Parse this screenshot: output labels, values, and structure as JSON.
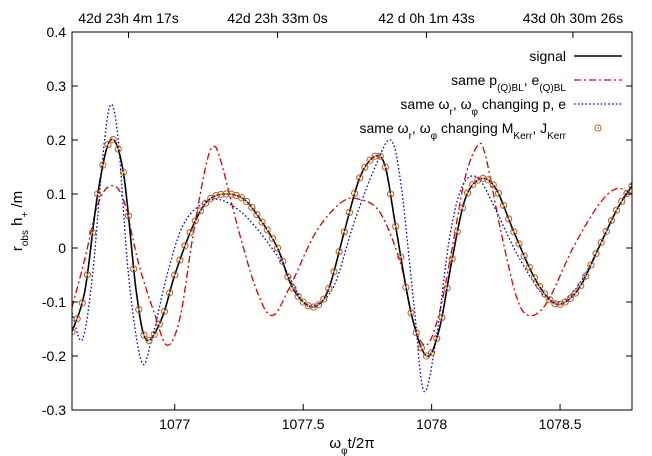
{
  "chart_data": {
    "type": "line",
    "xlabel": {
      "base": "ω",
      "sub": "φ",
      "rest": "t/2π"
    },
    "ylabel": {
      "part1": "r",
      "sub1": "obs",
      "part2": " h",
      "sub2": "+",
      "part3": " /m"
    },
    "xlim": [
      1076.6,
      1078.78
    ],
    "ylim": [
      -0.3,
      0.4
    ],
    "x_ticks": [
      1077,
      1077.5,
      1078,
      1078.5
    ],
    "x_tick_labels": [
      "1077",
      "1077.5",
      "1078",
      "1078.5"
    ],
    "y_ticks": [
      -0.3,
      -0.2,
      -0.1,
      0,
      0.1,
      0.2,
      0.3,
      0.4
    ],
    "y_tick_labels": [
      "-0.3",
      "-0.2",
      "-0.1",
      "0",
      "0.1",
      "0.2",
      "0.3",
      "0.4"
    ],
    "top_axis": {
      "ticks": [
        1076.82,
        1077.4,
        1077.98,
        1078.55
      ],
      "labels": [
        "42d 23h 4m 17s",
        "42d 23h 33m 0s",
        "42 d 0h 1m 43s",
        "43d 0h 30m 26s"
      ]
    },
    "grid": false,
    "legend_position": "top-right",
    "series": [
      {
        "name": "signal",
        "legend": [
          {
            "t": "signal"
          }
        ],
        "color": "#000000",
        "style": "solid",
        "points": [
          [
            1076.6,
            -0.155
          ],
          [
            1076.65,
            -0.08
          ],
          [
            1076.7,
            0.1
          ],
          [
            1076.75,
            0.2
          ],
          [
            1076.8,
            0.14
          ],
          [
            1076.85,
            -0.08
          ],
          [
            1076.89,
            -0.17
          ],
          [
            1076.95,
            -0.13
          ],
          [
            1077.0,
            -0.05
          ],
          [
            1077.07,
            0.04
          ],
          [
            1077.13,
            0.088
          ],
          [
            1077.2,
            0.1
          ],
          [
            1077.27,
            0.09
          ],
          [
            1077.33,
            0.055
          ],
          [
            1077.4,
            0.0
          ],
          [
            1077.45,
            -0.065
          ],
          [
            1077.5,
            -0.1
          ],
          [
            1077.55,
            -0.108
          ],
          [
            1077.6,
            -0.075
          ],
          [
            1077.66,
            0.03
          ],
          [
            1077.72,
            0.13
          ],
          [
            1077.78,
            0.17
          ],
          [
            1077.82,
            0.15
          ],
          [
            1077.86,
            0.04
          ],
          [
            1077.92,
            -0.12
          ],
          [
            1077.98,
            -0.2
          ],
          [
            1078.03,
            -0.15
          ],
          [
            1078.08,
            -0.02
          ],
          [
            1078.13,
            0.09
          ],
          [
            1078.19,
            0.128
          ],
          [
            1078.25,
            0.11
          ],
          [
            1078.32,
            0.03
          ],
          [
            1078.4,
            -0.055
          ],
          [
            1078.47,
            -0.1
          ],
          [
            1078.52,
            -0.1
          ],
          [
            1078.58,
            -0.07
          ],
          [
            1078.65,
            0.0
          ],
          [
            1078.72,
            0.07
          ],
          [
            1078.78,
            0.115
          ]
        ]
      },
      {
        "name": "same p(Q)BL, e(Q)BL",
        "legend": [
          {
            "t": "same p"
          },
          {
            "t": "(Q)BL",
            "sub": true
          },
          {
            "t": ", e"
          },
          {
            "t": "(Q)BL",
            "sub": true
          }
        ],
        "color": "#dd0000",
        "style": "dashdot",
        "points": [
          [
            1076.6,
            -0.11
          ],
          [
            1076.65,
            -0.02
          ],
          [
            1076.7,
            0.08
          ],
          [
            1076.75,
            0.115
          ],
          [
            1076.8,
            0.09
          ],
          [
            1076.86,
            -0.03
          ],
          [
            1076.92,
            -0.12
          ],
          [
            1076.97,
            -0.18
          ],
          [
            1077.02,
            -0.13
          ],
          [
            1077.07,
            0.02
          ],
          [
            1077.12,
            0.15
          ],
          [
            1077.15,
            0.188
          ],
          [
            1077.18,
            0.16
          ],
          [
            1077.25,
            0.03
          ],
          [
            1077.32,
            -0.08
          ],
          [
            1077.38,
            -0.125
          ],
          [
            1077.45,
            -0.07
          ],
          [
            1077.55,
            0.03
          ],
          [
            1077.65,
            0.085
          ],
          [
            1077.72,
            0.09
          ],
          [
            1077.8,
            0.065
          ],
          [
            1077.88,
            -0.03
          ],
          [
            1077.93,
            -0.14
          ],
          [
            1077.98,
            -0.18
          ],
          [
            1078.03,
            -0.12
          ],
          [
            1078.08,
            0.0
          ],
          [
            1078.13,
            0.13
          ],
          [
            1078.18,
            0.19
          ],
          [
            1078.21,
            0.17
          ],
          [
            1078.27,
            0.03
          ],
          [
            1078.33,
            -0.09
          ],
          [
            1078.38,
            -0.125
          ],
          [
            1078.45,
            -0.1
          ],
          [
            1078.55,
            0.0
          ],
          [
            1078.65,
            0.08
          ],
          [
            1078.72,
            0.11
          ],
          [
            1078.78,
            0.1
          ]
        ]
      },
      {
        "name": "same ωr, ωφ changing p, e",
        "legend": [
          {
            "t": "same ω"
          },
          {
            "t": "r",
            "sub": true
          },
          {
            "t": ", ω"
          },
          {
            "t": "φ",
            "sub": true
          },
          {
            "t": " changing p, e"
          }
        ],
        "color": "#0000dd",
        "style": "dotted",
        "points": [
          [
            1076.6,
            -0.12
          ],
          [
            1076.64,
            -0.17
          ],
          [
            1076.68,
            -0.05
          ],
          [
            1076.72,
            0.17
          ],
          [
            1076.75,
            0.265
          ],
          [
            1076.78,
            0.2
          ],
          [
            1076.82,
            -0.05
          ],
          [
            1076.87,
            -0.21
          ],
          [
            1076.91,
            -0.17
          ],
          [
            1076.97,
            -0.05
          ],
          [
            1077.03,
            0.04
          ],
          [
            1077.1,
            0.08
          ],
          [
            1077.17,
            0.09
          ],
          [
            1077.25,
            0.07
          ],
          [
            1077.33,
            0.03
          ],
          [
            1077.42,
            -0.03
          ],
          [
            1077.5,
            -0.1
          ],
          [
            1077.55,
            -0.105
          ],
          [
            1077.62,
            -0.07
          ],
          [
            1077.7,
            0.05
          ],
          [
            1077.78,
            0.15
          ],
          [
            1077.84,
            0.2
          ],
          [
            1077.88,
            0.12
          ],
          [
            1077.93,
            -0.1
          ],
          [
            1077.97,
            -0.265
          ],
          [
            1078.02,
            -0.16
          ],
          [
            1078.07,
            0.02
          ],
          [
            1078.12,
            0.115
          ],
          [
            1078.18,
            0.13
          ],
          [
            1078.25,
            0.07
          ],
          [
            1078.32,
            0.0
          ],
          [
            1078.38,
            -0.05
          ],
          [
            1078.44,
            -0.09
          ],
          [
            1078.5,
            -0.1
          ],
          [
            1078.57,
            -0.07
          ],
          [
            1078.65,
            0.0
          ],
          [
            1078.72,
            0.07
          ],
          [
            1078.78,
            0.12
          ]
        ]
      },
      {
        "name": "same ωr, ωφ changing MKerr, JKerr",
        "legend": [
          {
            "t": "same ω"
          },
          {
            "t": "r",
            "sub": true
          },
          {
            "t": ", ω"
          },
          {
            "t": "φ",
            "sub": true
          },
          {
            "t": " changing M"
          },
          {
            "t": "Kerr",
            "sub": true
          },
          {
            "t": ", J"
          },
          {
            "t": "Kerr",
            "sub": true
          }
        ],
        "color": "#b85c2c",
        "style": "markers",
        "marker_step": 0.02
      }
    ]
  }
}
